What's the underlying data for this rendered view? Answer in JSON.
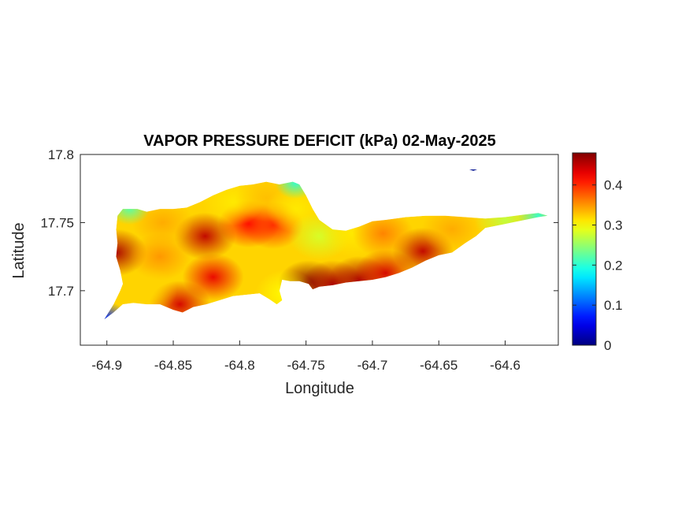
{
  "chart_data": {
    "type": "heatmap",
    "title": "VAPOR PRESSURE DEFICIT (kPa) 02-May-2025",
    "xlabel": "Longitude",
    "ylabel": "Latitude",
    "xlim": [
      -64.92,
      -64.56
    ],
    "ylim": [
      17.66,
      17.8
    ],
    "xticks": [
      -64.9,
      -64.85,
      -64.8,
      -64.75,
      -64.7,
      -64.65,
      -64.6
    ],
    "xtick_labels": [
      "-64.9",
      "-64.85",
      "-64.8",
      "-64.75",
      "-64.7",
      "-64.65",
      "-64.6"
    ],
    "yticks": [
      17.7,
      17.75,
      17.8
    ],
    "ytick_labels": [
      "17.7",
      "17.75",
      "17.8"
    ],
    "colorbar": {
      "colormap": "jet",
      "clim": [
        0,
        0.48
      ],
      "ticks": [
        0,
        0.1,
        0.2,
        0.3,
        0.4
      ],
      "tick_labels": [
        "0",
        "0.1",
        "0.2",
        "0.3",
        "0.4"
      ]
    },
    "grid": false,
    "region_outline": [
      [
        -64.902,
        17.679
      ],
      [
        -64.895,
        17.684
      ],
      [
        -64.888,
        17.69
      ],
      [
        -64.88,
        17.691
      ],
      [
        -64.87,
        17.69
      ],
      [
        -64.86,
        17.69
      ],
      [
        -64.85,
        17.686
      ],
      [
        -64.843,
        17.684
      ],
      [
        -64.835,
        17.688
      ],
      [
        -64.825,
        17.69
      ],
      [
        -64.815,
        17.693
      ],
      [
        -64.805,
        17.696
      ],
      [
        -64.795,
        17.697
      ],
      [
        -64.785,
        17.698
      ],
      [
        -64.778,
        17.694
      ],
      [
        -64.772,
        17.69
      ],
      [
        -64.768,
        17.693
      ],
      [
        -64.77,
        17.7
      ],
      [
        -64.768,
        17.708
      ],
      [
        -64.762,
        17.707
      ],
      [
        -64.755,
        17.707
      ],
      [
        -64.748,
        17.705
      ],
      [
        -64.745,
        17.701
      ],
      [
        -64.74,
        17.703
      ],
      [
        -64.73,
        17.704
      ],
      [
        -64.72,
        17.706
      ],
      [
        -64.71,
        17.707
      ],
      [
        -64.7,
        17.708
      ],
      [
        -64.69,
        17.71
      ],
      [
        -64.68,
        17.713
      ],
      [
        -64.67,
        17.717
      ],
      [
        -64.66,
        17.722
      ],
      [
        -64.65,
        17.726
      ],
      [
        -64.64,
        17.728
      ],
      [
        -64.63,
        17.735
      ],
      [
        -64.622,
        17.74
      ],
      [
        -64.615,
        17.746
      ],
      [
        -64.605,
        17.748
      ],
      [
        -64.595,
        17.75
      ],
      [
        -64.585,
        17.752
      ],
      [
        -64.575,
        17.754
      ],
      [
        -64.568,
        17.755
      ],
      [
        -64.575,
        17.757
      ],
      [
        -64.585,
        17.756
      ],
      [
        -64.6,
        17.754
      ],
      [
        -64.615,
        17.753
      ],
      [
        -64.63,
        17.754
      ],
      [
        -64.645,
        17.755
      ],
      [
        -64.66,
        17.755
      ],
      [
        -64.675,
        17.754
      ],
      [
        -64.69,
        17.752
      ],
      [
        -64.7,
        17.751
      ],
      [
        -64.71,
        17.747
      ],
      [
        -64.72,
        17.744
      ],
      [
        -64.73,
        17.745
      ],
      [
        -64.74,
        17.752
      ],
      [
        -64.745,
        17.76
      ],
      [
        -64.75,
        17.77
      ],
      [
        -64.755,
        17.778
      ],
      [
        -64.76,
        17.78
      ],
      [
        -64.77,
        17.778
      ],
      [
        -64.78,
        17.78
      ],
      [
        -64.79,
        17.778
      ],
      [
        -64.8,
        17.777
      ],
      [
        -64.81,
        17.774
      ],
      [
        -64.82,
        17.77
      ],
      [
        -64.83,
        17.765
      ],
      [
        -64.84,
        17.761
      ],
      [
        -64.85,
        17.76
      ],
      [
        -64.86,
        17.76
      ],
      [
        -64.87,
        17.758
      ],
      [
        -64.877,
        17.76
      ],
      [
        -64.888,
        17.76
      ],
      [
        -64.892,
        17.755
      ],
      [
        -64.893,
        17.745
      ],
      [
        -64.892,
        17.735
      ],
      [
        -64.893,
        17.725
      ],
      [
        -64.89,
        17.715
      ],
      [
        -64.888,
        17.705
      ],
      [
        -64.89,
        17.7
      ],
      [
        -64.895,
        17.69
      ]
    ],
    "islet_outline": [
      [
        -64.627,
        17.789
      ],
      [
        -64.624,
        17.788
      ],
      [
        -64.621,
        17.789
      ]
    ],
    "field_centers": [
      {
        "lon": -64.893,
        "lat": 17.728,
        "value": 0.46
      },
      {
        "lon": -64.826,
        "lat": 17.74,
        "value": 0.45
      },
      {
        "lon": -64.793,
        "lat": 17.749,
        "value": 0.42
      },
      {
        "lon": -64.775,
        "lat": 17.748,
        "value": 0.4
      },
      {
        "lon": -64.748,
        "lat": 17.705,
        "value": 0.48
      },
      {
        "lon": -64.73,
        "lat": 17.705,
        "value": 0.46
      },
      {
        "lon": -64.71,
        "lat": 17.708,
        "value": 0.46
      },
      {
        "lon": -64.69,
        "lat": 17.713,
        "value": 0.44
      },
      {
        "lon": -64.662,
        "lat": 17.729,
        "value": 0.45
      },
      {
        "lon": -64.82,
        "lat": 17.71,
        "value": 0.43
      },
      {
        "lon": -64.845,
        "lat": 17.69,
        "value": 0.44
      },
      {
        "lon": -64.86,
        "lat": 17.725,
        "value": 0.35
      },
      {
        "lon": -64.87,
        "lat": 17.7,
        "value": 0.32
      },
      {
        "lon": -64.858,
        "lat": 17.75,
        "value": 0.34
      },
      {
        "lon": -64.805,
        "lat": 17.765,
        "value": 0.31
      },
      {
        "lon": -64.78,
        "lat": 17.768,
        "value": 0.33
      },
      {
        "lon": -64.757,
        "lat": 17.76,
        "value": 0.31
      },
      {
        "lon": -64.74,
        "lat": 17.74,
        "value": 0.28
      },
      {
        "lon": -64.715,
        "lat": 17.742,
        "value": 0.31
      },
      {
        "lon": -64.692,
        "lat": 17.742,
        "value": 0.36
      },
      {
        "lon": -64.64,
        "lat": 17.745,
        "value": 0.34
      },
      {
        "lon": -64.6,
        "lat": 17.752,
        "value": 0.27
      },
      {
        "lon": -64.575,
        "lat": 17.755,
        "value": 0.2
      },
      {
        "lon": -64.9,
        "lat": 17.68,
        "value": 0.08
      },
      {
        "lon": -64.883,
        "lat": 17.76,
        "value": 0.22
      },
      {
        "lon": -64.758,
        "lat": 17.779,
        "value": 0.2
      },
      {
        "lon": -64.765,
        "lat": 17.698,
        "value": 0.3
      },
      {
        "lon": -64.624,
        "lat": 17.789,
        "value": 0.04
      }
    ]
  }
}
